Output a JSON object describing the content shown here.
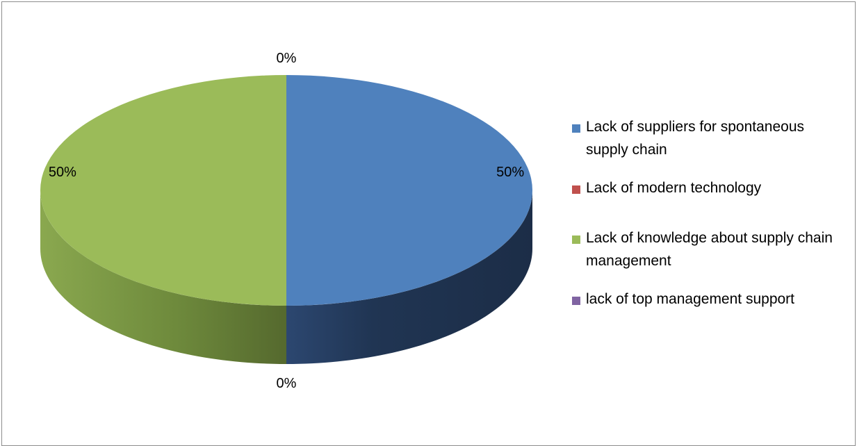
{
  "chart_data": {
    "type": "pie",
    "style": "3d",
    "categories": [
      "Lack of suppliers for spontaneous supply chain",
      "Lack of modern technology",
      "Lack of knowledge about supply chain management",
      "lack of top management support"
    ],
    "values": [
      50,
      0,
      50,
      0
    ],
    "data_labels": [
      "50%",
      "0%",
      "50%",
      "0%"
    ],
    "colors": [
      "#4f81bd",
      "#c0504d",
      "#9bbb59",
      "#8064a2"
    ],
    "legend_position": "right"
  }
}
